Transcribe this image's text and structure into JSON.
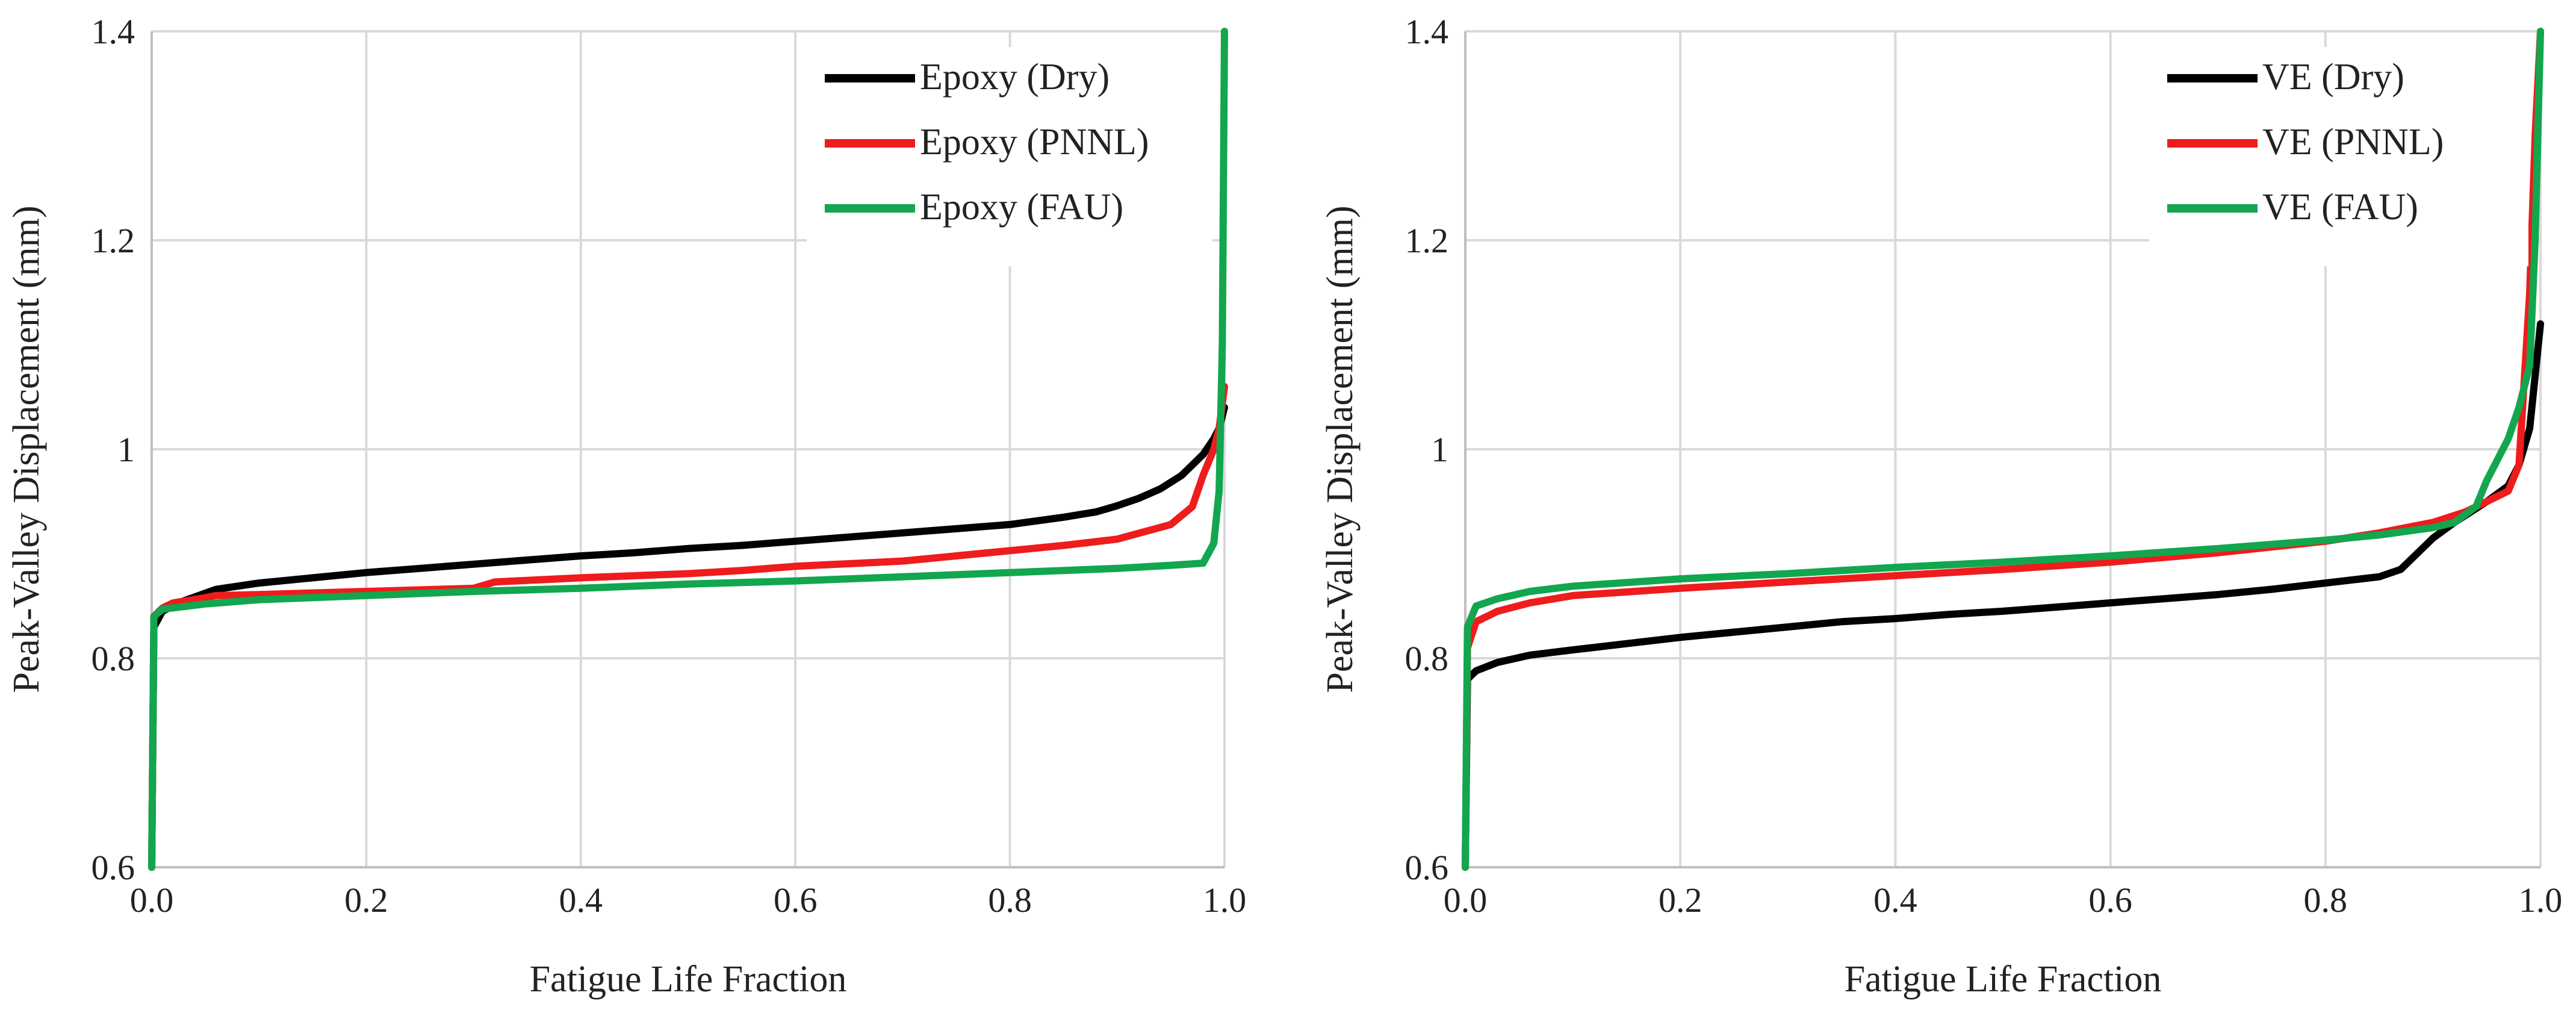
{
  "chart_data": [
    {
      "type": "line",
      "title": "",
      "xlabel": "Fatigue Life Fraction",
      "ylabel": "Peak-Valley Displacement (mm)",
      "xlim": [
        0,
        1
      ],
      "ylim": [
        0.6,
        1.4
      ],
      "xticks": [
        0,
        0.2,
        0.4,
        0.6,
        0.8,
        1
      ],
      "xtick_labels": [
        "0.0",
        "0.2",
        "0.4",
        "0.6",
        "0.8",
        "1.0"
      ],
      "yticks": [
        0.6,
        0.8,
        1,
        1.2,
        1.4
      ],
      "ytick_labels": [
        "0.6",
        "0.8",
        "1",
        "1.2",
        "1.4"
      ],
      "grid": true,
      "legend_position": "top-right",
      "series": [
        {
          "name": "Epoxy (Dry)",
          "color": "#000000",
          "x": [
            0,
            0.002,
            0.01,
            0.03,
            0.06,
            0.1,
            0.15,
            0.2,
            0.25,
            0.3,
            0.35,
            0.4,
            0.45,
            0.5,
            0.55,
            0.6,
            0.65,
            0.7,
            0.75,
            0.8,
            0.85,
            0.88,
            0.9,
            0.92,
            0.94,
            0.96,
            0.98,
            0.99,
            0.995,
            1.0
          ],
          "y": [
            0.6,
            0.83,
            0.845,
            0.855,
            0.866,
            0.872,
            0.877,
            0.882,
            0.886,
            0.89,
            0.894,
            0.898,
            0.901,
            0.905,
            0.908,
            0.912,
            0.916,
            0.92,
            0.924,
            0.928,
            0.935,
            0.94,
            0.946,
            0.953,
            0.962,
            0.975,
            0.995,
            1.01,
            1.02,
            1.04
          ]
        },
        {
          "name": "Epoxy (PNNL)",
          "color": "#ee1c1c",
          "x": [
            0,
            0.002,
            0.01,
            0.02,
            0.05,
            0.06,
            0.1,
            0.2,
            0.3,
            0.32,
            0.4,
            0.5,
            0.55,
            0.6,
            0.7,
            0.75,
            0.8,
            0.85,
            0.9,
            0.95,
            0.97,
            0.98,
            0.99,
            0.995,
            1.0
          ],
          "y": [
            0.6,
            0.84,
            0.848,
            0.853,
            0.858,
            0.86,
            0.861,
            0.864,
            0.867,
            0.873,
            0.877,
            0.881,
            0.884,
            0.888,
            0.893,
            0.898,
            0.903,
            0.908,
            0.914,
            0.928,
            0.945,
            0.975,
            1.0,
            1.02,
            1.06
          ]
        },
        {
          "name": "Epoxy (FAU)",
          "color": "#12a64f",
          "x": [
            0,
            0.002,
            0.01,
            0.05,
            0.1,
            0.2,
            0.3,
            0.4,
            0.5,
            0.6,
            0.7,
            0.8,
            0.9,
            0.95,
            0.98,
            0.99,
            0.995,
            0.998,
            1.0
          ],
          "y": [
            0.6,
            0.84,
            0.847,
            0.852,
            0.856,
            0.86,
            0.864,
            0.867,
            0.871,
            0.874,
            0.878,
            0.882,
            0.886,
            0.889,
            0.891,
            0.91,
            0.96,
            1.1,
            1.4
          ]
        }
      ]
    },
    {
      "type": "line",
      "title": "",
      "xlabel": "Fatigue Life Fraction",
      "ylabel": "Peak-Valley Displacement (mm)",
      "xlim": [
        0,
        1
      ],
      "ylim": [
        0.6,
        1.4
      ],
      "xticks": [
        0,
        0.2,
        0.4,
        0.6,
        0.8,
        1
      ],
      "xtick_labels": [
        "0.0",
        "0.2",
        "0.4",
        "0.6",
        "0.8",
        "1.0"
      ],
      "yticks": [
        0.6,
        0.8,
        1,
        1.2,
        1.4
      ],
      "ytick_labels": [
        "0.6",
        "0.8",
        "1",
        "1.2",
        "1.4"
      ],
      "grid": true,
      "legend_position": "top-right",
      "series": [
        {
          "name": "VE (Dry)",
          "color": "#000000",
          "x": [
            0,
            0.002,
            0.01,
            0.03,
            0.06,
            0.1,
            0.15,
            0.2,
            0.25,
            0.3,
            0.35,
            0.4,
            0.45,
            0.5,
            0.55,
            0.6,
            0.65,
            0.7,
            0.75,
            0.8,
            0.85,
            0.87,
            0.88,
            0.9,
            0.92,
            0.95,
            0.97,
            0.98,
            0.99,
            1.0
          ],
          "y": [
            0.6,
            0.78,
            0.788,
            0.796,
            0.803,
            0.808,
            0.814,
            0.82,
            0.825,
            0.83,
            0.835,
            0.838,
            0.842,
            0.845,
            0.849,
            0.853,
            0.857,
            0.861,
            0.866,
            0.872,
            0.878,
            0.885,
            0.895,
            0.915,
            0.93,
            0.95,
            0.965,
            0.985,
            1.02,
            1.12
          ]
        },
        {
          "name": "VE (PNNL)",
          "color": "#ee1c1c",
          "x": [
            0,
            0.002,
            0.01,
            0.03,
            0.06,
            0.1,
            0.2,
            0.3,
            0.4,
            0.5,
            0.6,
            0.7,
            0.8,
            0.85,
            0.9,
            0.93,
            0.95,
            0.97,
            0.98,
            0.99,
            0.995,
            1.0
          ],
          "y": [
            0.6,
            0.81,
            0.835,
            0.845,
            0.853,
            0.86,
            0.867,
            0.873,
            0.879,
            0.885,
            0.892,
            0.901,
            0.912,
            0.92,
            0.93,
            0.94,
            0.95,
            0.96,
            0.985,
            1.15,
            1.3,
            1.4
          ]
        },
        {
          "name": "VE (FAU)",
          "color": "#12a64f",
          "x": [
            0,
            0.002,
            0.01,
            0.03,
            0.06,
            0.1,
            0.2,
            0.3,
            0.4,
            0.5,
            0.6,
            0.7,
            0.8,
            0.85,
            0.9,
            0.92,
            0.94,
            0.95,
            0.97,
            0.98,
            0.99,
            0.995,
            1.0
          ],
          "y": [
            0.6,
            0.83,
            0.85,
            0.857,
            0.864,
            0.869,
            0.876,
            0.881,
            0.887,
            0.892,
            0.898,
            0.905,
            0.913,
            0.918,
            0.925,
            0.93,
            0.945,
            0.97,
            1.01,
            1.04,
            1.08,
            1.2,
            1.4
          ]
        }
      ]
    }
  ]
}
